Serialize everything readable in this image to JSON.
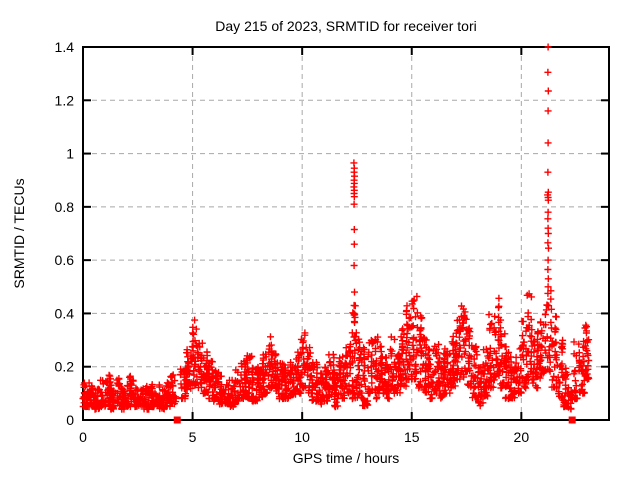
{
  "page": {
    "background": "#ffffff"
  },
  "chart_data": {
    "type": "scatter",
    "title": "Day 215 of 2023, SRMTID for receiver tori",
    "xlabel": "GPS time / hours",
    "ylabel": "SRMTID / TECUs",
    "xlim": [
      0,
      24
    ],
    "ylim": [
      0,
      1.4
    ],
    "xticks": [
      {
        "value": 0,
        "label": "0"
      },
      {
        "value": 5,
        "label": "5"
      },
      {
        "value": 10,
        "label": "10"
      },
      {
        "value": 15,
        "label": "15"
      },
      {
        "value": 20,
        "label": "20"
      }
    ],
    "yticks": [
      {
        "value": 0,
        "label": "0"
      },
      {
        "value": 0.2,
        "label": "0.2"
      },
      {
        "value": 0.4,
        "label": "0.4"
      },
      {
        "value": 0.6,
        "label": "0.6"
      },
      {
        "value": 0.8,
        "label": "0.8"
      },
      {
        "value": 1,
        "label": "1"
      },
      {
        "value": 1.2,
        "label": "1.2"
      },
      {
        "value": 1.4,
        "label": "1.4"
      }
    ],
    "grid": true,
    "legend": false,
    "colors": {
      "points": "#ff0000",
      "grid": "#a8a8a8",
      "axis": "#000000",
      "text": "#000000"
    },
    "series": [
      {
        "name": "SRMTID",
        "marker": "plus",
        "envelope_bins": [
          [
            0,
            0.25,
            0.05,
            0.16,
            22
          ],
          [
            0.25,
            0.5,
            0.05,
            0.14,
            22
          ],
          [
            0.5,
            0.75,
            0.04,
            0.13,
            22
          ],
          [
            0.75,
            1,
            0.05,
            0.15,
            22
          ],
          [
            1,
            1.25,
            0.05,
            0.17,
            22
          ],
          [
            1.25,
            1.5,
            0.04,
            0.14,
            22
          ],
          [
            1.5,
            1.75,
            0.05,
            0.16,
            22
          ],
          [
            1.75,
            2,
            0.04,
            0.12,
            22
          ],
          [
            2,
            2.25,
            0.05,
            0.17,
            22
          ],
          [
            2.25,
            2.5,
            0.05,
            0.15,
            22
          ],
          [
            2.5,
            2.75,
            0.04,
            0.12,
            22
          ],
          [
            2.75,
            3,
            0.04,
            0.13,
            22
          ],
          [
            3,
            3.25,
            0.05,
            0.15,
            22
          ],
          [
            3.25,
            3.5,
            0.05,
            0.14,
            22
          ],
          [
            3.5,
            3.75,
            0.04,
            0.13,
            22
          ],
          [
            3.75,
            4,
            0.05,
            0.14,
            22
          ],
          [
            4,
            4.3,
            0.06,
            0.17,
            24
          ],
          [
            4.45,
            4.7,
            0.08,
            0.2,
            20
          ],
          [
            4.7,
            4.95,
            0.1,
            0.27,
            20
          ],
          [
            4.95,
            5.2,
            0.13,
            0.38,
            22
          ],
          [
            5.2,
            5.45,
            0.12,
            0.3,
            20
          ],
          [
            5.45,
            5.7,
            0.1,
            0.26,
            20
          ],
          [
            5.7,
            5.95,
            0.08,
            0.22,
            20
          ],
          [
            5.95,
            6.2,
            0.07,
            0.2,
            20
          ],
          [
            6.2,
            6.45,
            0.06,
            0.18,
            20
          ],
          [
            6.45,
            6.7,
            0.06,
            0.16,
            20
          ],
          [
            6.7,
            6.95,
            0.05,
            0.15,
            20
          ],
          [
            6.95,
            7.2,
            0.07,
            0.19,
            20
          ],
          [
            7.2,
            7.45,
            0.08,
            0.22,
            20
          ],
          [
            7.45,
            7.7,
            0.08,
            0.25,
            20
          ],
          [
            7.7,
            7.95,
            0.07,
            0.2,
            20
          ],
          [
            7.95,
            8.2,
            0.08,
            0.2,
            20
          ],
          [
            8.2,
            8.45,
            0.1,
            0.25,
            20
          ],
          [
            8.45,
            8.7,
            0.12,
            0.32,
            22
          ],
          [
            8.7,
            8.95,
            0.1,
            0.26,
            20
          ],
          [
            8.95,
            9.2,
            0.08,
            0.22,
            20
          ],
          [
            9.2,
            9.45,
            0.08,
            0.2,
            20
          ],
          [
            9.45,
            9.7,
            0.09,
            0.22,
            20
          ],
          [
            9.7,
            9.95,
            0.1,
            0.26,
            20
          ],
          [
            9.95,
            10.2,
            0.12,
            0.33,
            22
          ],
          [
            10.2,
            10.45,
            0.1,
            0.28,
            20
          ],
          [
            10.45,
            10.7,
            0.07,
            0.22,
            20
          ],
          [
            10.7,
            10.95,
            0.06,
            0.18,
            20
          ],
          [
            10.95,
            11.2,
            0.07,
            0.2,
            20
          ],
          [
            11.2,
            11.45,
            0.09,
            0.26,
            20
          ],
          [
            11.45,
            11.7,
            0.05,
            0.18,
            20
          ],
          [
            11.7,
            11.95,
            0.08,
            0.25,
            20
          ],
          [
            11.95,
            12.2,
            0.1,
            0.3,
            20
          ],
          [
            12.2,
            12.5,
            0.08,
            0.45,
            26
          ],
          [
            12.5,
            12.75,
            0.08,
            0.32,
            20
          ],
          [
            12.75,
            13,
            0.05,
            0.28,
            20
          ],
          [
            13,
            13.25,
            0.1,
            0.3,
            20
          ],
          [
            13.25,
            13.5,
            0.08,
            0.32,
            20
          ],
          [
            13.5,
            13.75,
            0.1,
            0.28,
            20
          ],
          [
            13.75,
            14,
            0.08,
            0.25,
            20
          ],
          [
            14,
            14.25,
            0.1,
            0.32,
            22
          ],
          [
            14.25,
            14.5,
            0.1,
            0.26,
            20
          ],
          [
            14.5,
            14.75,
            0.12,
            0.35,
            22
          ],
          [
            14.75,
            15,
            0.15,
            0.45,
            24
          ],
          [
            15,
            15.25,
            0.15,
            0.5,
            24
          ],
          [
            15.25,
            15.5,
            0.12,
            0.42,
            22
          ],
          [
            15.5,
            15.75,
            0.1,
            0.32,
            20
          ],
          [
            15.75,
            16,
            0.08,
            0.28,
            20
          ],
          [
            16,
            16.25,
            0.1,
            0.3,
            20
          ],
          [
            16.25,
            16.5,
            0.08,
            0.26,
            20
          ],
          [
            16.5,
            16.75,
            0.1,
            0.28,
            20
          ],
          [
            16.75,
            17,
            0.12,
            0.32,
            20
          ],
          [
            17,
            17.25,
            0.15,
            0.4,
            22
          ],
          [
            17.25,
            17.5,
            0.15,
            0.43,
            22
          ],
          [
            17.5,
            17.75,
            0.12,
            0.35,
            20
          ],
          [
            17.75,
            18,
            0.08,
            0.28,
            20
          ],
          [
            18,
            18.25,
            0.05,
            0.2,
            20
          ],
          [
            18.25,
            18.5,
            0.08,
            0.28,
            20
          ],
          [
            18.5,
            18.75,
            0.12,
            0.4,
            22
          ],
          [
            18.75,
            19,
            0.15,
            0.47,
            22
          ],
          [
            19,
            19.25,
            0.12,
            0.38,
            20
          ],
          [
            19.25,
            19.5,
            0.08,
            0.28,
            20
          ],
          [
            19.5,
            19.75,
            0.08,
            0.24,
            20
          ],
          [
            19.75,
            20,
            0.1,
            0.28,
            20
          ],
          [
            20,
            20.25,
            0.12,
            0.38,
            20
          ],
          [
            20.25,
            20.5,
            0.15,
            0.48,
            22
          ],
          [
            20.5,
            20.75,
            0.12,
            0.35,
            20
          ],
          [
            20.75,
            21,
            0.15,
            0.38,
            20
          ],
          [
            21,
            21.4,
            0.18,
            0.5,
            26
          ],
          [
            21.4,
            21.65,
            0.12,
            0.4,
            20
          ],
          [
            21.65,
            21.9,
            0.08,
            0.3,
            20
          ],
          [
            21.9,
            22.15,
            0.05,
            0.2,
            20
          ],
          [
            22.15,
            22.35,
            0.04,
            0.14,
            16
          ],
          [
            22.4,
            22.65,
            0.08,
            0.3,
            18
          ],
          [
            22.65,
            22.9,
            0.1,
            0.32,
            18
          ],
          [
            22.9,
            23.1,
            0.15,
            0.37,
            20
          ]
        ],
        "spike_points": [
          [
            12.36,
            0.965
          ],
          [
            12.38,
            0.945
          ],
          [
            12.37,
            0.93
          ],
          [
            12.39,
            0.915
          ],
          [
            12.37,
            0.9
          ],
          [
            12.38,
            0.888
          ],
          [
            12.36,
            0.875
          ],
          [
            12.38,
            0.862
          ],
          [
            12.37,
            0.85
          ],
          [
            12.38,
            0.838
          ],
          [
            12.37,
            0.81
          ],
          [
            12.38,
            0.715
          ],
          [
            12.38,
            0.66
          ],
          [
            12.37,
            0.58
          ],
          [
            12.39,
            0.48
          ],
          [
            12.37,
            0.43
          ],
          [
            12.35,
            0.4
          ],
          [
            21.22,
            1.4
          ],
          [
            21.21,
            1.305
          ],
          [
            21.23,
            1.235
          ],
          [
            21.22,
            1.16
          ],
          [
            21.22,
            1.04
          ],
          [
            21.21,
            0.93
          ],
          [
            21.23,
            0.855
          ],
          [
            21.2,
            0.845
          ],
          [
            21.22,
            0.835
          ],
          [
            21.23,
            0.825
          ],
          [
            21.22,
            0.78
          ],
          [
            21.21,
            0.755
          ],
          [
            21.22,
            0.72
          ],
          [
            21.23,
            0.7
          ],
          [
            21.21,
            0.665
          ],
          [
            21.24,
            0.645
          ],
          [
            21.22,
            0.6
          ],
          [
            21.21,
            0.565
          ],
          [
            21.23,
            0.53
          ],
          [
            21.22,
            0.5
          ],
          [
            21.21,
            0.475
          ]
        ]
      },
      {
        "name": "data-gap-markers",
        "marker": "filled-square",
        "points": [
          [
            4.3,
            0
          ],
          [
            22.32,
            0
          ]
        ]
      }
    ]
  }
}
